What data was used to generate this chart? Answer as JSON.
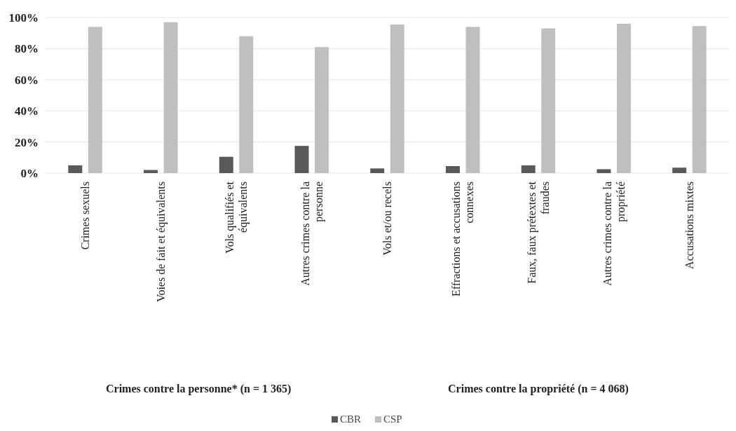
{
  "chart_data": {
    "type": "bar",
    "categories": [
      "Crimes sexuels",
      "Voies de fait et équivalents",
      "Vols qualifiés et équivalents",
      "Autres crimes contre la personne",
      "Vols et/ou recels",
      "Effractions et accusations connexes",
      "Faux, faux prétextes et fraudes",
      "Autres crimes contre la propriété",
      "Accusations mixtes"
    ],
    "series": [
      {
        "name": "CBR",
        "color": "#595959",
        "values": [
          5,
          2,
          10.5,
          17.5,
          3,
          4.5,
          5,
          2.5,
          3.5
        ]
      },
      {
        "name": "CSP",
        "color": "#bfbfbf",
        "values": [
          94,
          97,
          88,
          81,
          95.5,
          94,
          93,
          96,
          94.5
        ]
      }
    ],
    "ylim": [
      0,
      100
    ],
    "yticks": [
      {
        "value": 0,
        "label": "0%"
      },
      {
        "value": 20,
        "label": "20%"
      },
      {
        "value": 40,
        "label": "40%"
      },
      {
        "value": 60,
        "label": "60%"
      },
      {
        "value": 80,
        "label": "80%"
      },
      {
        "value": 100,
        "label": "100%"
      }
    ],
    "grid": "y",
    "legend": "bottom",
    "annotations": [
      "Crimes contre la personne* (n = 1 365)",
      "Crimes contre la propriété (n = 4 068)"
    ]
  }
}
